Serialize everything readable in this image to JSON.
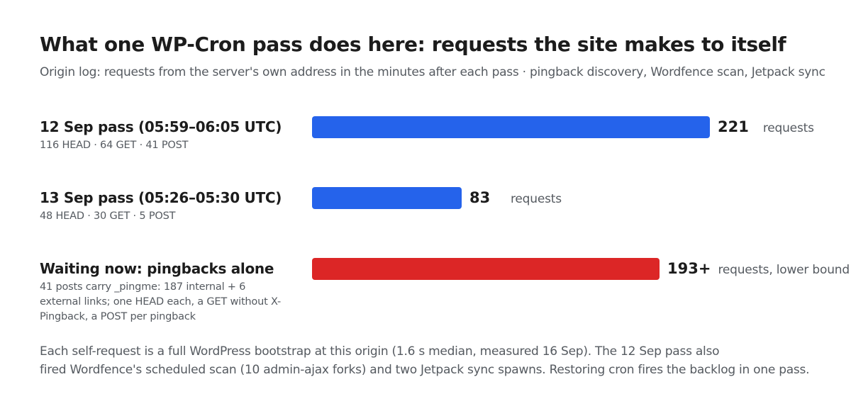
{
  "title": "What one WP-Cron pass does here: requests the site makes to itself",
  "subtitle": "Origin log: requests from the server's own address in the minutes after each pass · pingback discovery, Wordfence scan, Jetpack sync",
  "footnote": {
    "line1": "Each self-request is a full WordPress bootstrap at this origin (1.6 s median, measured 16 Sep). The 12 Sep pass also",
    "line2": "fired Wordfence's scheduled scan (10 admin-ajax forks) and two Jetpack sync spawns. Restoring cron fires the backlog in one pass."
  },
  "colors": {
    "measured": "#2563eb",
    "pending": "#dc2626"
  },
  "chart_data": {
    "type": "bar",
    "orientation": "horizontal",
    "categories": [
      "12 Sep pass (05:59–06:05 UTC)",
      "13 Sep pass (05:26–05:30 UTC)",
      "Waiting now: pingbacks alone"
    ],
    "values": [
      221,
      83,
      193
    ],
    "xlim": [
      0,
      221
    ],
    "rows": [
      {
        "label": "12 Sep pass (05:59–06:05 UTC)",
        "detail": "116 HEAD · 64 GET · 41 POST",
        "value": 221,
        "value_label": "221",
        "unit": "requests",
        "color": "#2563eb"
      },
      {
        "label": "13 Sep pass (05:26–05:30 UTC)",
        "detail": "48 HEAD · 30 GET · 5 POST",
        "value": 83,
        "value_label": "83",
        "unit": "requests",
        "color": "#2563eb"
      },
      {
        "label": "Waiting now: pingbacks alone",
        "detail": "41 posts carry _pingme: 187 internal + 6 external links; one HEAD each, a GET without X-Pingback, a POST per pingback",
        "value": 193,
        "value_label": "193+",
        "unit": "requests, lower bound",
        "color": "#dc2626"
      }
    ]
  }
}
